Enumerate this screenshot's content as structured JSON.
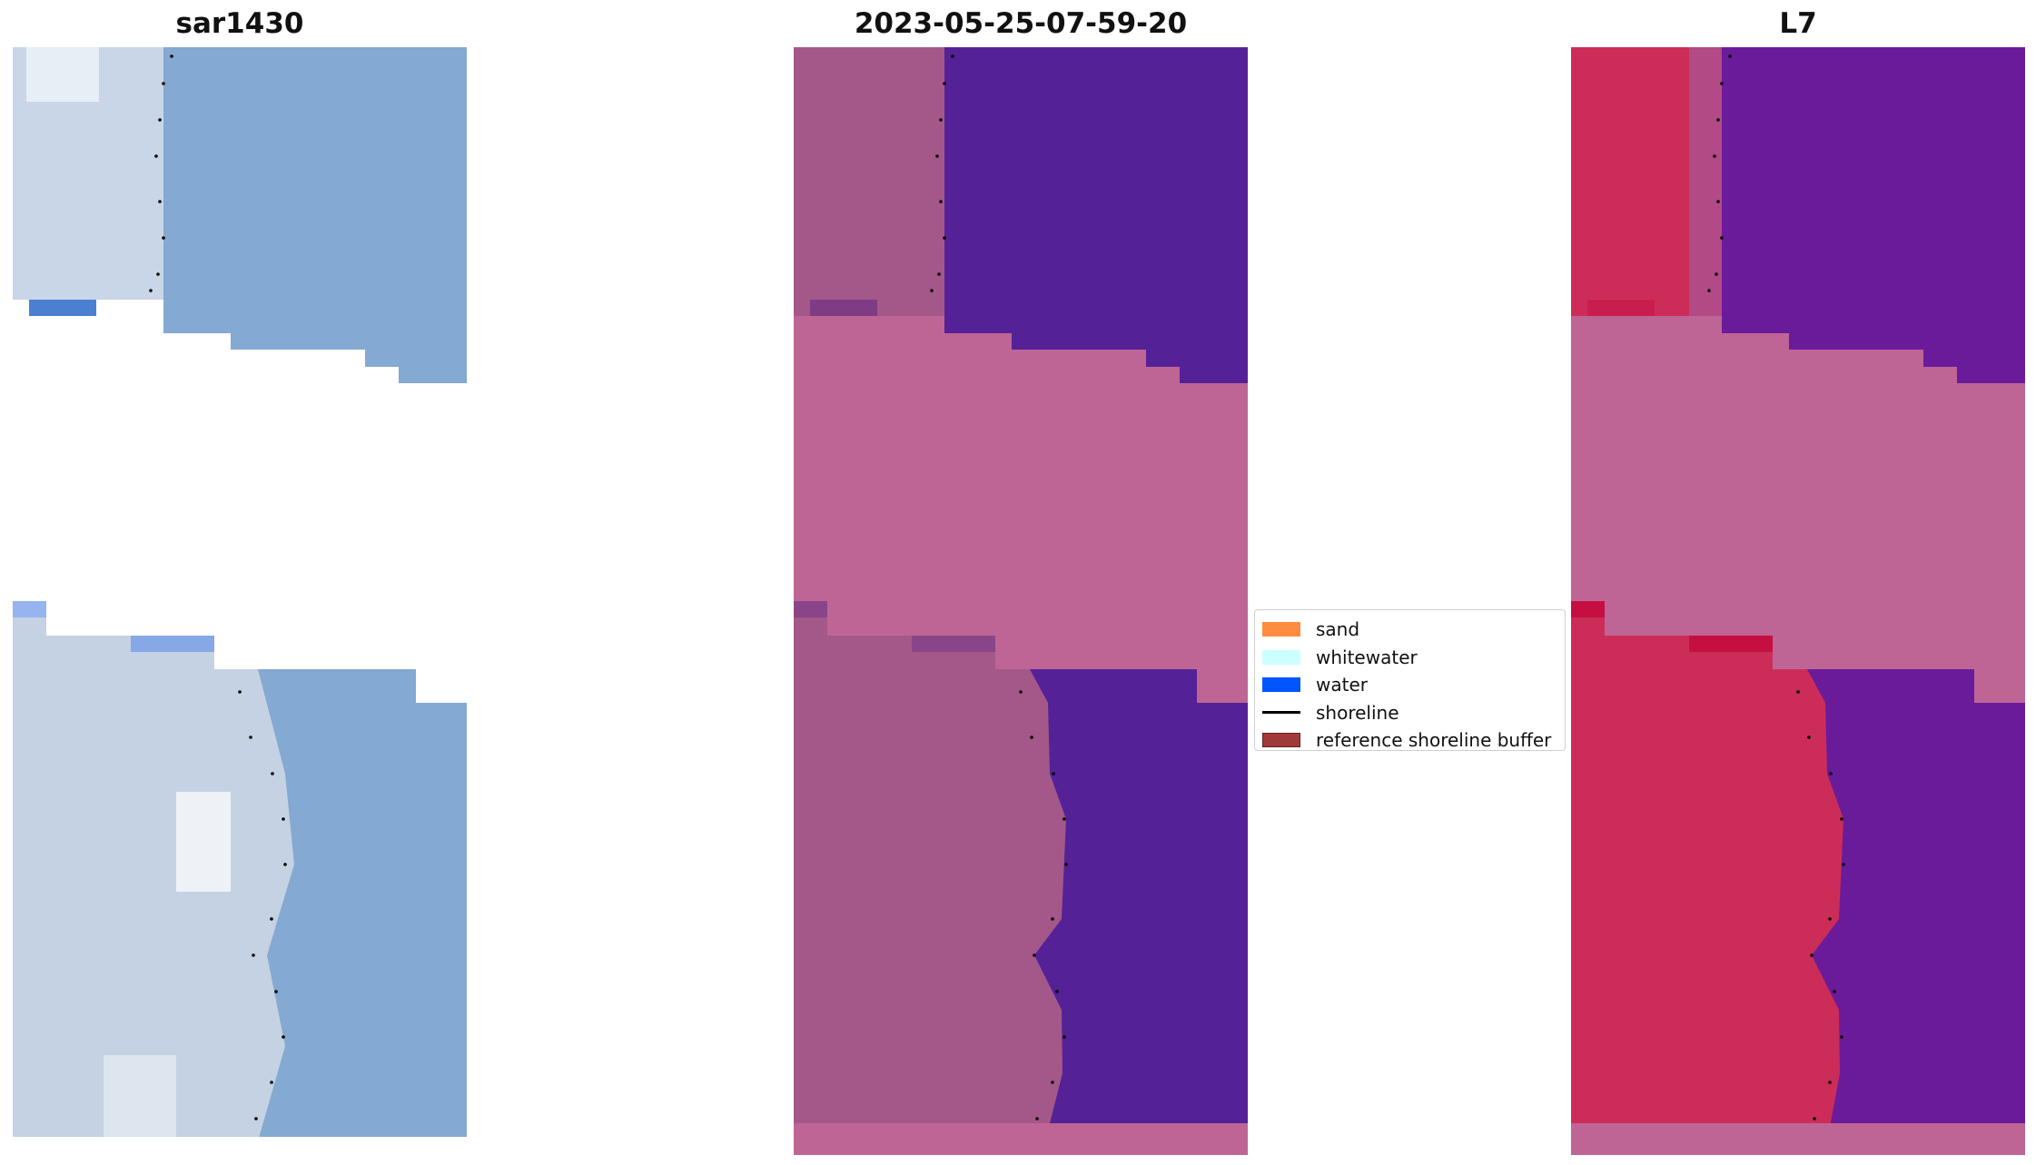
{
  "panels": [
    {
      "title": "sar1430",
      "rgb": "#84a9d2",
      "land": "#c5d2e3"
    },
    {
      "title": "2023-05-25-07-59-20",
      "water": "#552197",
      "land": "#a35889",
      "nodata": "#be6596"
    },
    {
      "title": "L7",
      "water": "#6a1b9a",
      "land": "#cc2d58",
      "nodata": "#be6596"
    }
  ],
  "legend": [
    {
      "label": "sand",
      "color": "#ff8c40",
      "kind": "patch"
    },
    {
      "label": "whitewater",
      "color": "#ccffff",
      "kind": "patch"
    },
    {
      "label": "water",
      "color": "#0055ff",
      "kind": "patch"
    },
    {
      "label": "shoreline",
      "color": "#000000",
      "kind": "line"
    },
    {
      "label": "reference shoreline buffer",
      "color": "#a03a3a",
      "kind": "patch"
    }
  ]
}
